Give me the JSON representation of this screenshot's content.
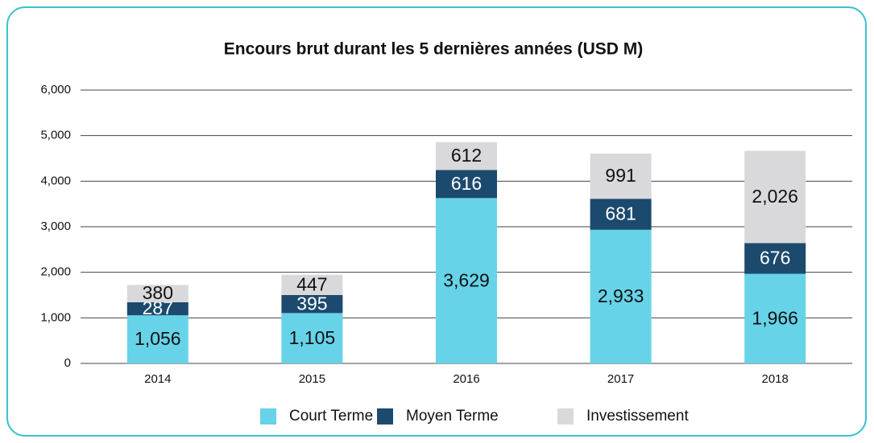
{
  "chart_data": {
    "type": "stacked_bar",
    "title": "Encours brut durant les 5 dernières années (USD M)",
    "categories": [
      "2014",
      "2015",
      "2016",
      "2017",
      "2018"
    ],
    "series": [
      {
        "name": "Court Terme",
        "color": "#66d3e8",
        "values": [
          1056,
          1105,
          3629,
          2933,
          1966
        ],
        "value_labels": [
          "1,056",
          "1,105",
          "3,629",
          "2,933",
          "1,966"
        ]
      },
      {
        "name": "Moyen Terme",
        "color": "#1c4a6e",
        "values": [
          287,
          395,
          616,
          681,
          676
        ]
      },
      {
        "name": "Investissement",
        "color": "#d9d9db",
        "values": [
          380,
          447,
          612,
          991,
          2026
        ],
        "value_labels": [
          "380",
          "447",
          "612",
          "991",
          "2,026"
        ]
      }
    ],
    "ylim": [
      0,
      6000
    ],
    "yticks": [
      0,
      {
        "value": 1000,
        "label": "1,000"
      },
      {
        "value": 2000,
        "label": "2,000"
      },
      {
        "value": 3000,
        "label": "3,000"
      },
      {
        "value": 4000,
        "label": "4,000"
      },
      {
        "value": 5000,
        "label": "5,000"
      },
      {
        "value": 6000,
        "label": "6,000"
      }
    ],
    "grid": true,
    "legend": "bottom"
  }
}
